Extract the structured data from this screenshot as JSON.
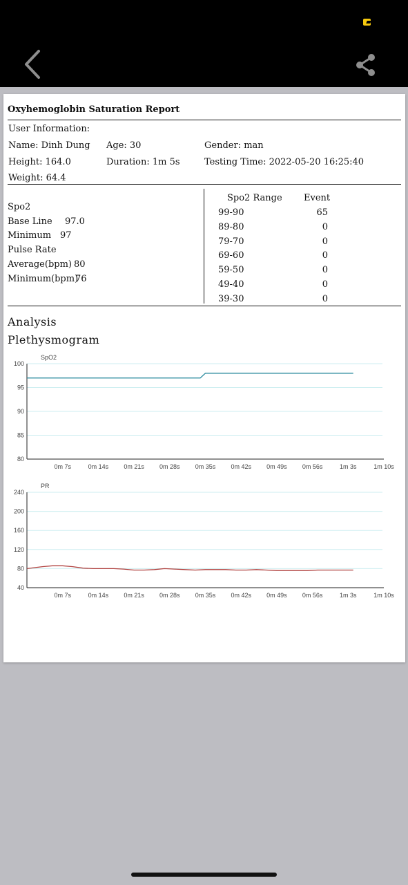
{
  "report": {
    "title": "Oxyhemoglobin Saturation Report",
    "user_info_label": "User Information:",
    "name": "Name: Dinh Dung",
    "age": "Age: 30",
    "gender": "Gender: man",
    "height": "Height: 164.0",
    "duration": "Duration: 1m 5s",
    "testing_time": "Testing Time: 2022-05-20 16:25:40",
    "weight": "Weight: 64.4"
  },
  "summary": {
    "spo2_label": "Spo2",
    "base_line_label": "Base Line",
    "base_line_value": "97.0",
    "minimum_label": "Minimum",
    "minimum_value": "97",
    "pulse_rate_label": "Pulse Rate",
    "average_bpm_label": "Average(bpm)",
    "average_bpm_value": "80",
    "minimum_bpm_label": "Minimum(bpm)",
    "minimum_bpm_value": "76"
  },
  "range_table": {
    "headers": [
      "Spo2 Range",
      "Event"
    ],
    "rows": [
      {
        "range": "99-90",
        "event": "65"
      },
      {
        "range": "89-80",
        "event": "0"
      },
      {
        "range": "79-70",
        "event": "0"
      },
      {
        "range": "69-60",
        "event": "0"
      },
      {
        "range": "59-50",
        "event": "0"
      },
      {
        "range": "49-40",
        "event": "0"
      },
      {
        "range": "39-30",
        "event": "0"
      }
    ]
  },
  "analysis_label": "Analysis",
  "plethysmogram_label": "Plethysmogram",
  "colors": {
    "spo2_line": "#2a8a9e",
    "pr_line": "#b0403e",
    "grid": "#cdeef0"
  },
  "icons": {
    "back": "chevron-left-icon",
    "share": "share-icon",
    "status": "status-indicator-icon"
  },
  "chart_data": [
    {
      "type": "line",
      "title": "SpO2",
      "x_ticks": [
        "0m 7s",
        "0m 14s",
        "0m 21s",
        "0m 28s",
        "0m 35s",
        "0m 42s",
        "0m 49s",
        "0m 56s",
        "1m 3s",
        "1m 10s"
      ],
      "y_ticks": [
        80,
        85,
        90,
        95,
        100
      ],
      "ylim": [
        80,
        100
      ],
      "xlim": [
        0,
        70
      ],
      "series": [
        {
          "x": [
            0,
            34,
            35,
            64
          ],
          "y": [
            97,
            97,
            98,
            98
          ]
        }
      ]
    },
    {
      "type": "line",
      "title": "PR",
      "x_ticks": [
        "0m 7s",
        "0m 14s",
        "0m 21s",
        "0m 28s",
        "0m 35s",
        "0m 42s",
        "0m 49s",
        "0m 56s",
        "1m 3s",
        "1m 10s"
      ],
      "y_ticks": [
        40,
        80,
        120,
        160,
        200,
        240
      ],
      "ylim": [
        40,
        240
      ],
      "xlim": [
        0,
        70
      ],
      "series": [
        {
          "x": [
            0,
            3,
            5,
            7,
            9,
            11,
            13,
            15,
            17,
            19,
            21,
            23,
            25,
            27,
            29,
            31,
            33,
            35,
            37,
            39,
            41,
            43,
            45,
            47,
            49,
            51,
            53,
            55,
            57,
            59,
            61,
            63,
            64
          ],
          "y": [
            80,
            84,
            86,
            86,
            84,
            81,
            80,
            80,
            80,
            79,
            77,
            77,
            78,
            80,
            79,
            78,
            77,
            78,
            78,
            78,
            77,
            77,
            78,
            77,
            76,
            76,
            76,
            76,
            77,
            77,
            77,
            77,
            77
          ]
        }
      ]
    }
  ]
}
